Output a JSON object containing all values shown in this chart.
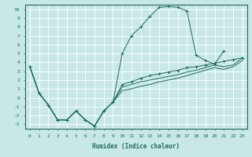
{
  "xlabel": "Humidex (Indice chaleur)",
  "bg_color": "#c8e8e8",
  "grid_color": "#ffffff",
  "line_color": "#1a6b5a",
  "xlim": [
    -0.5,
    23.5
  ],
  "ylim": [
    -3.5,
    10.5
  ],
  "xticks": [
    0,
    1,
    2,
    3,
    4,
    5,
    6,
    7,
    8,
    9,
    10,
    11,
    12,
    13,
    14,
    15,
    16,
    17,
    18,
    19,
    20,
    21,
    22,
    23
  ],
  "yticks": [
    -3,
    -2,
    -1,
    0,
    1,
    2,
    3,
    4,
    5,
    6,
    7,
    8,
    9,
    10
  ],
  "s1_x": [
    0,
    1,
    2,
    3,
    4,
    5,
    6,
    7,
    8,
    9,
    10,
    11,
    12,
    13,
    14,
    15,
    16,
    17,
    18,
    19,
    20,
    21,
    22,
    23
  ],
  "s1_y": [
    3.5,
    0.5,
    -0.8,
    -2.5,
    -2.5,
    -1.5,
    -2.5,
    -3.2,
    -1.5,
    -0.5,
    5.0,
    7.0,
    8.0,
    9.2,
    10.2,
    10.3,
    10.2,
    9.8,
    4.8,
    4.2,
    3.8,
    5.3,
    null,
    null
  ],
  "s2_x": [
    0,
    1,
    2,
    3,
    4,
    5,
    6,
    7,
    8,
    9,
    10,
    11,
    12,
    13,
    14,
    15,
    16,
    17,
    18,
    19,
    20,
    21,
    22,
    23
  ],
  "s2_y": [
    3.5,
    0.5,
    -0.8,
    -2.5,
    -2.5,
    -1.5,
    -2.5,
    -3.2,
    -1.5,
    -0.5,
    1.5,
    1.8,
    2.2,
    2.5,
    2.7,
    2.9,
    3.1,
    3.4,
    3.5,
    3.7,
    3.9,
    4.1,
    4.3,
    4.5
  ],
  "s3_x": [
    0,
    1,
    2,
    3,
    4,
    5,
    6,
    7,
    8,
    9,
    10,
    11,
    12,
    13,
    14,
    15,
    16,
    17,
    18,
    19,
    20,
    21,
    22,
    23
  ],
  "s3_y": [
    3.5,
    0.5,
    -0.8,
    -2.5,
    -2.5,
    -1.5,
    -2.5,
    -3.2,
    -1.5,
    -0.5,
    1.2,
    1.5,
    1.8,
    2.0,
    2.2,
    2.4,
    2.6,
    2.9,
    3.1,
    3.4,
    3.7,
    3.5,
    3.7,
    4.5
  ],
  "s4_x": [
    0,
    1,
    2,
    3,
    4,
    5,
    6,
    7,
    8,
    9,
    10,
    11,
    12,
    13,
    14,
    15,
    16,
    17,
    18,
    19,
    20,
    21,
    22,
    23
  ],
  "s4_y": [
    3.5,
    0.5,
    -0.8,
    -2.5,
    -2.5,
    -1.5,
    -2.5,
    -3.2,
    -1.5,
    -0.5,
    0.8,
    1.0,
    1.3,
    1.5,
    1.8,
    2.0,
    2.2,
    2.5,
    2.8,
    3.1,
    3.4,
    3.2,
    3.5,
    4.2
  ]
}
